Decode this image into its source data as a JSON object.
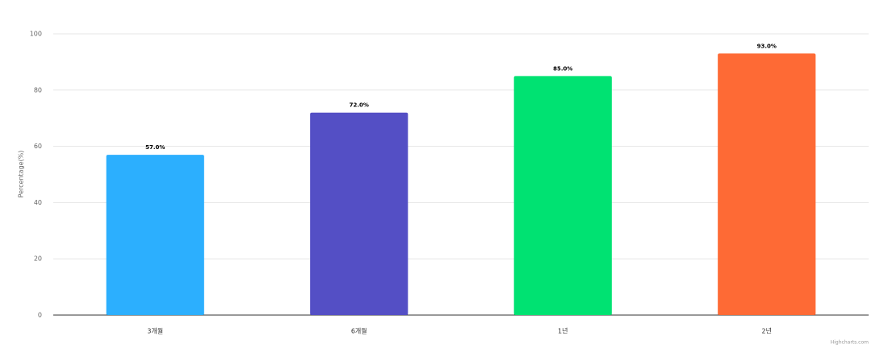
{
  "chart_data": {
    "type": "bar",
    "y_axis_title": "Percentage(%)",
    "categories": [
      "3개월",
      "6개월",
      "1년",
      "2년"
    ],
    "values": [
      57,
      72,
      85,
      93
    ],
    "value_labels": [
      "57.0%",
      "72.0%",
      "85.0%",
      "93.0%"
    ],
    "colors": [
      "#2caffe",
      "#544fc5",
      "#00e272",
      "#fe6a35"
    ],
    "ylim": [
      0,
      100
    ],
    "yticks": [
      0,
      20,
      40,
      60,
      80,
      100
    ],
    "grid": true,
    "credits": "Highcharts.com"
  }
}
